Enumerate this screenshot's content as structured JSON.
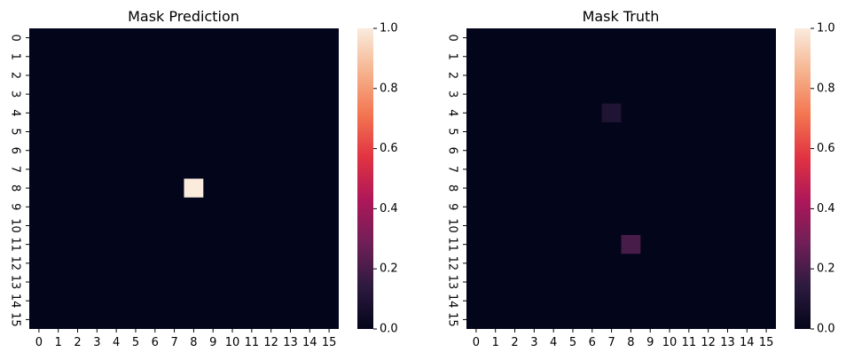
{
  "chart_data": [
    {
      "type": "heatmap",
      "title": "Mask Prediction",
      "rows": [
        "0",
        "1",
        "2",
        "3",
        "4",
        "5",
        "6",
        "7",
        "8",
        "9",
        "10",
        "11",
        "12",
        "13",
        "14",
        "15"
      ],
      "cols": [
        "0",
        "1",
        "2",
        "3",
        "4",
        "5",
        "6",
        "7",
        "8",
        "9",
        "10",
        "11",
        "12",
        "13",
        "14",
        "15"
      ],
      "cells": [
        {
          "row": 8,
          "col": 8,
          "value": 1.0
        }
      ],
      "default_value": 0.0,
      "colorbar": {
        "min": 0.0,
        "max": 1.0,
        "ticks": [
          "0.0",
          "0.2",
          "0.4",
          "0.6",
          "0.8",
          "1.0"
        ]
      },
      "colormap": "rocket"
    },
    {
      "type": "heatmap",
      "title": "Mask Truth",
      "rows": [
        "0",
        "1",
        "2",
        "3",
        "4",
        "5",
        "6",
        "7",
        "8",
        "9",
        "10",
        "11",
        "12",
        "13",
        "14",
        "15"
      ],
      "cols": [
        "0",
        "1",
        "2",
        "3",
        "4",
        "5",
        "6",
        "7",
        "8",
        "9",
        "10",
        "11",
        "12",
        "13",
        "14",
        "15"
      ],
      "cells": [
        {
          "row": 4,
          "col": 7,
          "value": 0.1
        },
        {
          "row": 11,
          "col": 8,
          "value": 0.2
        }
      ],
      "default_value": 0.0,
      "colorbar": {
        "min": 0.0,
        "max": 1.0,
        "ticks": [
          "0.0",
          "0.2",
          "0.4",
          "0.6",
          "0.8",
          "1.0"
        ]
      },
      "colormap": "rocket"
    }
  ],
  "colors": {
    "colormap_stops": [
      "#03051a",
      "#2d1a3f",
      "#701f57",
      "#ae1759",
      "#e13342",
      "#f37651",
      "#f6b48f",
      "#faebdd"
    ]
  }
}
